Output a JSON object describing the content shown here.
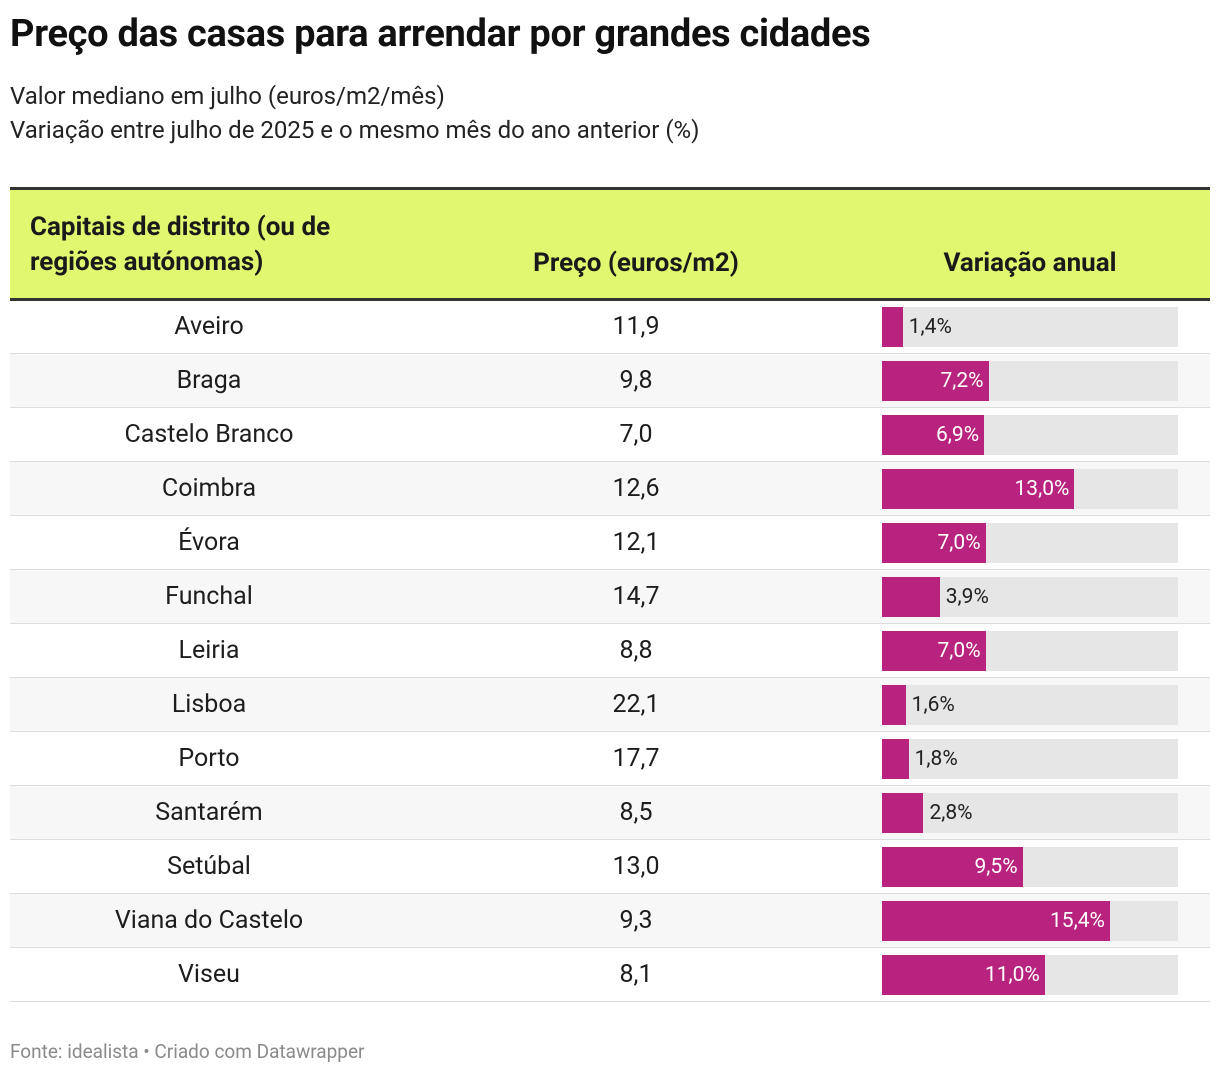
{
  "header": {
    "title": "Preço das casas para arrendar por grandes cidades",
    "subtitle": [
      "Valor mediano em julho (euros/m2/mês)",
      "Variação entre julho de 2025 e o mesmo mês do ano anterior (%)"
    ]
  },
  "table": {
    "columns": [
      "Capitais de distrito (ou de regiões autónomas)",
      "Preço (euros/m2)",
      "Variação anual"
    ],
    "cities": [
      "Aveiro",
      "Braga",
      "Castelo Branco",
      "Coimbra",
      "Évora",
      "Funchal",
      "Leiria",
      "Lisboa",
      "Porto",
      "Santarém",
      "Setúbal",
      "Viana do Castelo",
      "Viseu"
    ],
    "prices": [
      "11,9",
      "9,8",
      "7,0",
      "12,6",
      "12,1",
      "14,7",
      "8,8",
      "22,1",
      "17,7",
      "8,5",
      "13,0",
      "9,3",
      "8,1"
    ],
    "variation": {
      "values": [
        1.4,
        7.2,
        6.9,
        13.0,
        7.0,
        3.9,
        7.0,
        1.6,
        1.8,
        2.8,
        9.5,
        15.4,
        11.0
      ],
      "value_labels": [
        "1,4%",
        "7,2%",
        "6,9%",
        "13,0%",
        "7,0%",
        "3,9%",
        "7,0%",
        "1,6%",
        "1,8%",
        "2,8%",
        "9,5%",
        "15,4%",
        "11,0%"
      ],
      "xlim": [
        0,
        20
      ],
      "color": "#b8237f"
    }
  },
  "footer": "Fonte: idealista • Criado com Datawrapper"
}
